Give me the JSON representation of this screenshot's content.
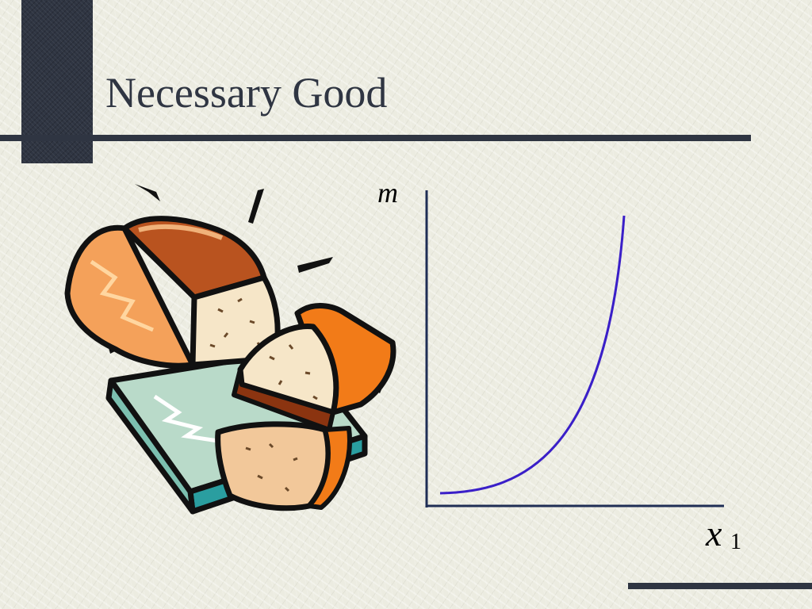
{
  "slide": {
    "title": "Necessary Good"
  },
  "graph": {
    "y_axis_label": "m",
    "x_axis_label": "x",
    "x_axis_subscript": "1",
    "axis_color": "#1f2e55",
    "curve_color": "#3a1fc8"
  },
  "illustration": {
    "subject": "bread-loaf-clipart"
  }
}
